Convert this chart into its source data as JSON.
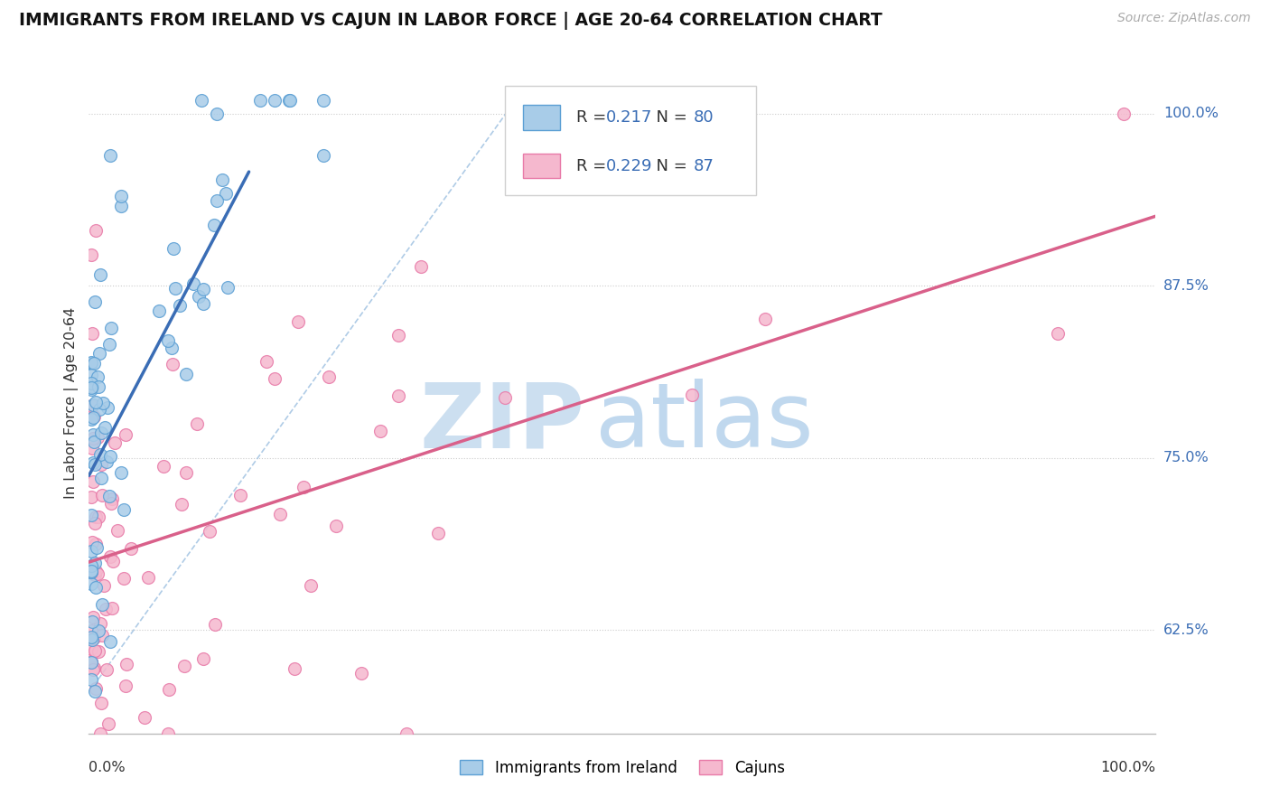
{
  "title": "IMMIGRANTS FROM IRELAND VS CAJUN IN LABOR FORCE | AGE 20-64 CORRELATION CHART",
  "source": "Source: ZipAtlas.com",
  "ylabel": "In Labor Force | Age 20-64",
  "ytick_labels": [
    "62.5%",
    "75.0%",
    "87.5%",
    "100.0%"
  ],
  "ytick_values": [
    0.625,
    0.75,
    0.875,
    1.0
  ],
  "xlim": [
    0.0,
    1.0
  ],
  "ylim_low": 0.55,
  "ylim_high": 1.03,
  "ireland_color": "#a8cce8",
  "cajun_color": "#f5b8ce",
  "ireland_edge": "#5b9fd4",
  "cajun_edge": "#e87aa8",
  "trend_ireland_color": "#3a6db5",
  "trend_cajun_color": "#d9608a",
  "diag_color": "#9bbfe0",
  "legend_R_color": "#3a6db5",
  "legend_N_color": "#3a6db5",
  "right_label_color": "#3a6db5",
  "watermark_zip_color": "#ccdff0",
  "watermark_atlas_color": "#c0d8ee",
  "legend_R_ireland": "0.217",
  "legend_N_ireland": "80",
  "legend_R_cajun": "0.229",
  "legend_N_cajun": "87",
  "ireland_legend": "Immigrants from Ireland",
  "cajun_legend": "Cajuns"
}
